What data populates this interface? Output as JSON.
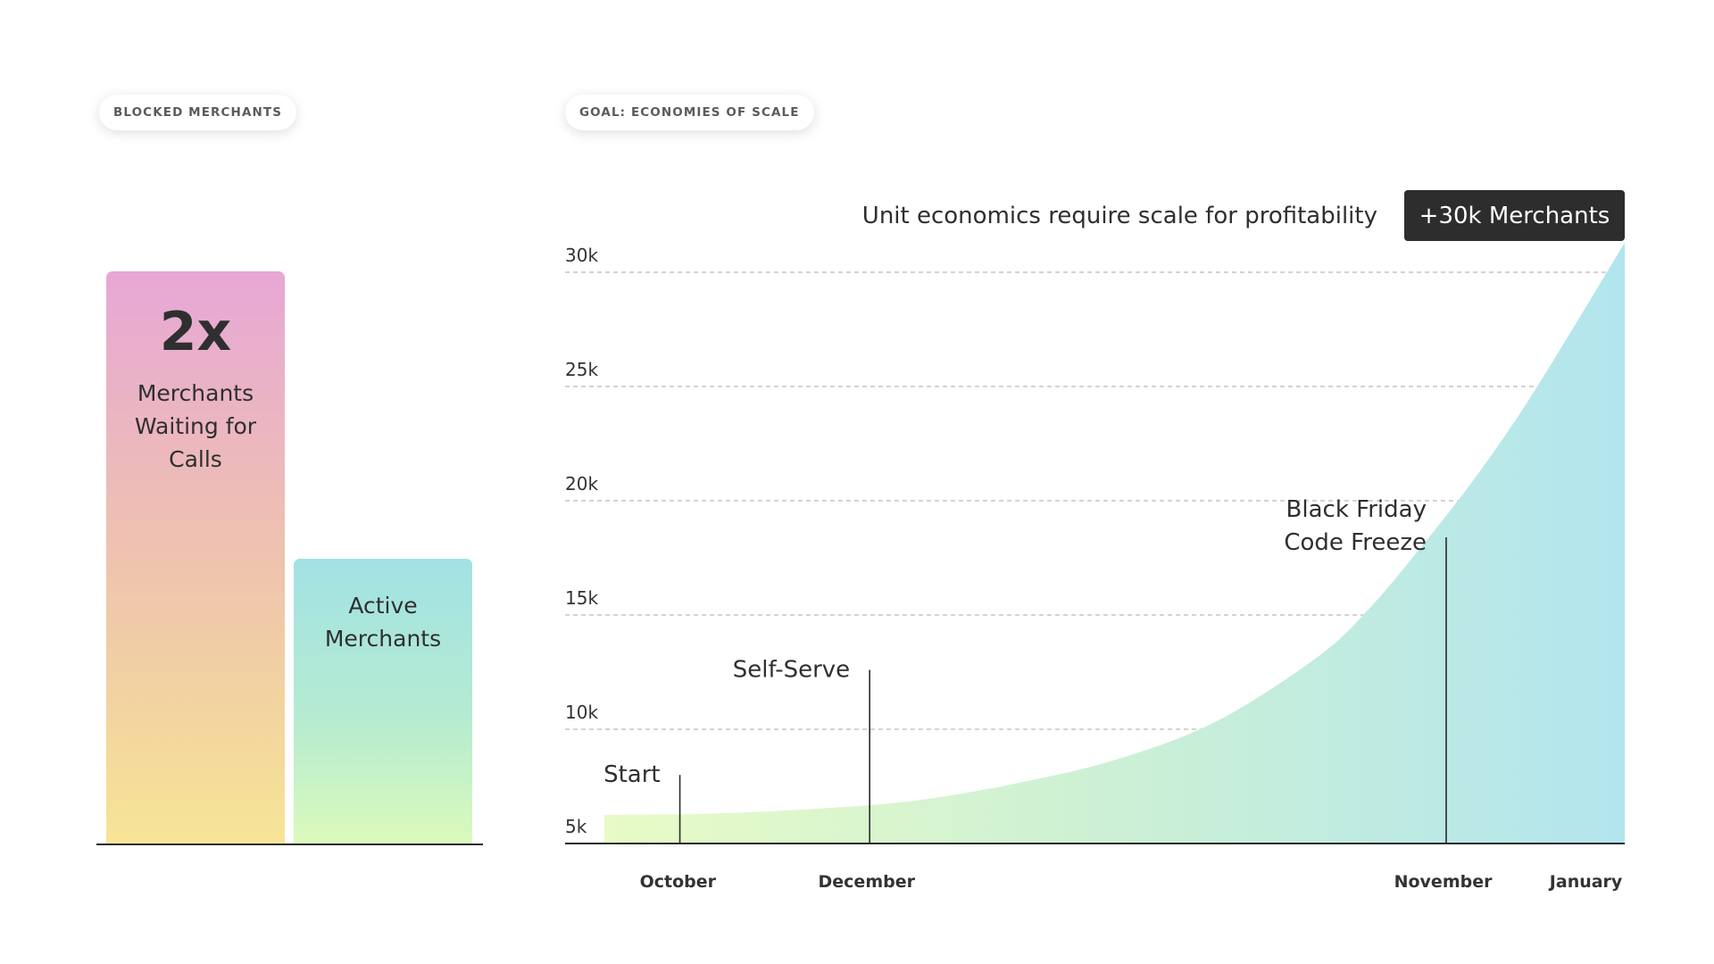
{
  "left_panel": {
    "pill_label": "BLOCKED MERCHANTS",
    "bars": {
      "blocked": {
        "value_label": "2x",
        "lines": [
          "Merchants",
          "Waiting for",
          "Calls"
        ]
      },
      "active": {
        "lines": [
          "Active",
          "Merchants"
        ]
      }
    },
    "ratio_blocked_to_active": 2
  },
  "right_panel": {
    "pill_label": "GOAL: ECONOMIES OF SCALE",
    "callout": "+30k Merchants"
  },
  "chart_data": [
    {
      "type": "bar",
      "categories": [
        "Merchants Waiting for Calls",
        "Active Merchants"
      ],
      "values": [
        2,
        1
      ],
      "title": "BLOCKED MERCHANTS",
      "annotations": [
        "2x"
      ]
    },
    {
      "type": "area",
      "title": "GOAL: ECONOMIES OF SCALE",
      "subtitle": "Unit economics require scale for profitability",
      "y_ticks": [
        {
          "value": 5000,
          "label": "5k"
        },
        {
          "value": 10000,
          "label": "10k"
        },
        {
          "value": 15000,
          "label": "15k"
        },
        {
          "value": 20000,
          "label": "20k"
        },
        {
          "value": 25000,
          "label": "25k"
        },
        {
          "value": 30000,
          "label": "30k"
        }
      ],
      "ylim": [
        5000,
        30000
      ],
      "x_domain": [
        0,
        1
      ],
      "x_ticks": [
        {
          "position": 0.072,
          "label": "October"
        },
        {
          "position": 0.257,
          "label": "December"
        },
        {
          "position": 0.822,
          "label": "November"
        },
        {
          "position": 0.962,
          "label": "January"
        }
      ],
      "series": [
        {
          "x": [
            0,
            0.1,
            0.2,
            0.3,
            0.4,
            0.5,
            0.6,
            0.7,
            0.75,
            0.8,
            0.85,
            0.9,
            0.95,
            1.0
          ],
          "y": [
            6250,
            6300,
            6500,
            6850,
            7600,
            8650,
            10350,
            13200,
            15300,
            17950,
            20800,
            24000,
            27600,
            31300
          ]
        }
      ],
      "milestones": [
        {
          "label": [
            "Start"
          ],
          "x": 0.074,
          "y_top": 8000
        },
        {
          "label": [
            "Self-Serve"
          ],
          "x": 0.26,
          "y_top": 12600
        },
        {
          "label": [
            "Black Friday",
            "Code Freeze"
          ],
          "x": 0.825,
          "y_top": 18400
        }
      ],
      "callout": "+30k Merchants",
      "grid": true,
      "colors": {
        "area_start": "#e8fbc6",
        "area_end": "#b2e5ee",
        "line": "#2b2b2b",
        "grid": "#b9b9b9"
      }
    }
  ]
}
